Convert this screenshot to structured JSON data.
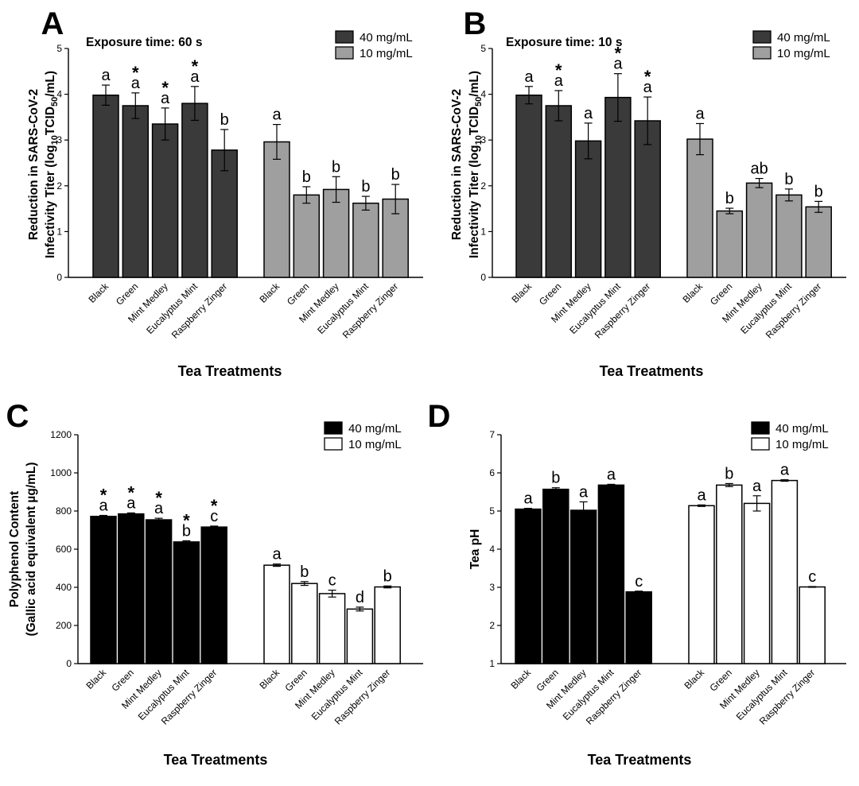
{
  "chart_data": [
    {
      "type": "bar",
      "panel": "A",
      "subtitle": "Exposure time: 60 s",
      "ylabel_line1": "Reduction in SARS-CoV-2",
      "ylabel_line2_parts": [
        "Infectivity Titer (log",
        "10",
        "TCID",
        "50",
        "/mL)"
      ],
      "xlabel": "Tea Treatments",
      "ylim": [
        0,
        5
      ],
      "yticks": [
        0,
        1,
        2,
        3,
        4,
        5
      ],
      "legend_position": "top-right",
      "categories": [
        "Black",
        "Green",
        "Mint Medley",
        "Eucalyptus Mint",
        "Raspberry Zinger"
      ],
      "series": [
        {
          "name": "40 mg/mL",
          "color": "#3a3a3a",
          "values": [
            3.98,
            3.75,
            3.35,
            3.8,
            2.78
          ],
          "errors": [
            0.22,
            0.28,
            0.35,
            0.37,
            0.45
          ],
          "letters": [
            "a",
            "a",
            "a",
            "a",
            "b"
          ],
          "stars": [
            false,
            true,
            true,
            true,
            false
          ]
        },
        {
          "name": "10 mg/mL",
          "color": "#9f9f9f",
          "values": [
            2.96,
            1.8,
            1.92,
            1.62,
            1.71
          ],
          "errors": [
            0.38,
            0.18,
            0.28,
            0.15,
            0.32
          ],
          "letters": [
            "a",
            "b",
            "b",
            "b",
            "b"
          ],
          "stars": [
            false,
            false,
            false,
            false,
            false
          ]
        }
      ]
    },
    {
      "type": "bar",
      "panel": "B",
      "subtitle": "Exposure time: 10 s",
      "ylabel_line1": "Reduction in SARS-CoV-2",
      "ylabel_line2_parts": [
        "Infectivity Titer (log",
        "10",
        "TCID",
        "50",
        "/mL)"
      ],
      "xlabel": "Tea Treatments",
      "ylim": [
        0,
        5
      ],
      "yticks": [
        0,
        1,
        2,
        3,
        4,
        5
      ],
      "legend_position": "top-right",
      "categories": [
        "Black",
        "Green",
        "Mint Medley",
        "Eucalyptus Mint",
        "Raspberry Zinger"
      ],
      "series": [
        {
          "name": "40 mg/mL",
          "color": "#3a3a3a",
          "values": [
            3.98,
            3.75,
            2.98,
            3.93,
            3.42
          ],
          "errors": [
            0.19,
            0.33,
            0.39,
            0.52,
            0.52
          ],
          "letters": [
            "a",
            "a",
            "a",
            "a",
            "a"
          ],
          "stars": [
            false,
            true,
            false,
            true,
            true
          ]
        },
        {
          "name": "10 mg/mL",
          "color": "#9f9f9f",
          "values": [
            3.02,
            1.45,
            2.06,
            1.8,
            1.54
          ],
          "errors": [
            0.34,
            0.06,
            0.1,
            0.13,
            0.12
          ],
          "letters": [
            "a",
            "b",
            "ab",
            "b",
            "b"
          ],
          "stars": [
            false,
            false,
            false,
            false,
            false
          ]
        }
      ]
    },
    {
      "type": "bar",
      "panel": "C",
      "subtitle": "",
      "ylabel_line1": "Polyphenol Content",
      "ylabel_line2_parts": [
        "(Gallic acid equivalent µg/mL)"
      ],
      "xlabel": "Tea Treatments",
      "ylim": [
        0,
        1200
      ],
      "yticks": [
        0,
        200,
        400,
        600,
        800,
        1000,
        1200
      ],
      "legend_position": "top-right",
      "categories": [
        "Black",
        "Green",
        "Mint Medley",
        "Eucalyptus Mint",
        "Raspberry Zinger"
      ],
      "series": [
        {
          "name": "40 mg/mL",
          "color": "#000000",
          "values": [
            772,
            785,
            754,
            638,
            716
          ],
          "errors": [
            5,
            5,
            8,
            6,
            5
          ],
          "letters": [
            "a",
            "a",
            "a",
            "b",
            "c"
          ],
          "stars": [
            true,
            true,
            true,
            true,
            true
          ]
        },
        {
          "name": "10 mg/mL",
          "color": "#ffffff",
          "values": [
            516,
            420,
            367,
            286,
            402
          ],
          "errors": [
            6,
            10,
            18,
            10,
            5
          ],
          "letters": [
            "a",
            "b",
            "c",
            "d",
            "b"
          ],
          "stars": [
            false,
            false,
            false,
            false,
            false
          ]
        }
      ]
    },
    {
      "type": "bar",
      "panel": "D",
      "subtitle": "",
      "ylabel_line1": "Tea pH",
      "ylabel_line2_parts": [],
      "xlabel": "Tea Treatments",
      "ylim": [
        1,
        7
      ],
      "yticks": [
        1,
        2,
        3,
        4,
        5,
        6,
        7
      ],
      "legend_position": "top-right",
      "categories": [
        "Black",
        "Green",
        "Mint Medley",
        "Eucalyptus Mint",
        "Raspberry Zinger"
      ],
      "series": [
        {
          "name": "40 mg/mL",
          "color": "#000000",
          "values": [
            5.05,
            5.57,
            5.02,
            5.68,
            2.88
          ],
          "errors": [
            0.02,
            0.04,
            0.22,
            0.02,
            0.02
          ],
          "letters": [
            "a",
            "b",
            "a",
            "a",
            "c"
          ],
          "stars": [
            false,
            false,
            false,
            false,
            false
          ]
        },
        {
          "name": "10 mg/mL",
          "color": "#ffffff",
          "values": [
            5.14,
            5.68,
            5.2,
            5.8,
            3.01
          ],
          "errors": [
            0.02,
            0.04,
            0.2,
            0.02,
            0.01
          ],
          "letters": [
            "a",
            "b",
            "a",
            "a",
            "c"
          ],
          "stars": [
            false,
            false,
            false,
            false,
            false
          ]
        }
      ]
    }
  ]
}
